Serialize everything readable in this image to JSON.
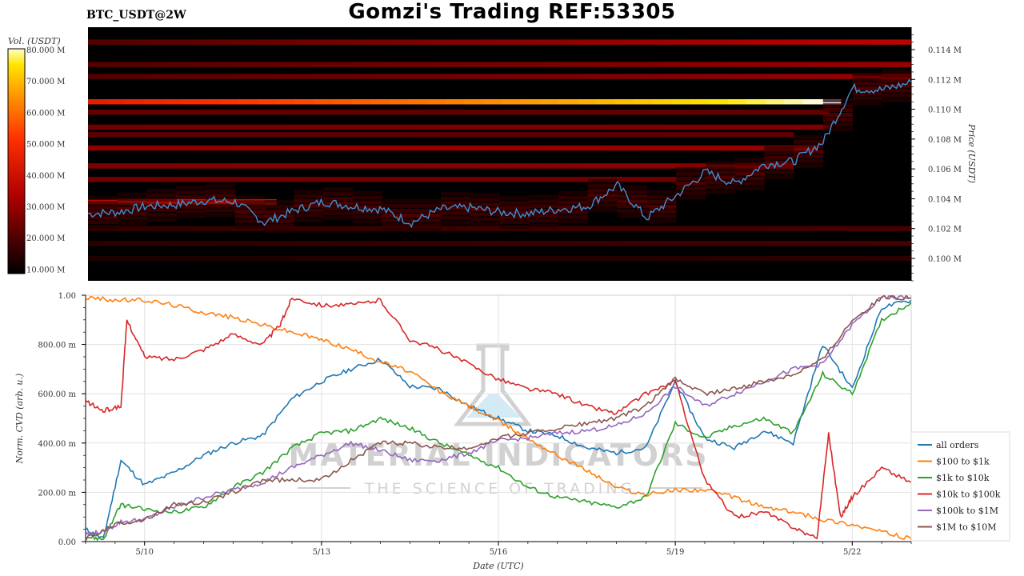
{
  "header": {
    "title": "Gomzi's Trading REF:53305",
    "symbol": "BTC_USDT@2W"
  },
  "watermark": {
    "line1": "MATERIAL INDICATORS",
    "line2": "THE SCIENCE OF TRADING",
    "icon": "flask-icon"
  },
  "colors": {
    "heat_bg": "#000000",
    "price_line": "#3d8fd4",
    "all_orders": "#1f77b4",
    "s100_1k": "#ff7f0e",
    "s1k_10k": "#2ca02c",
    "s10k_100k": "#d62728",
    "s100k_1m": "#9467bd",
    "s1m_10m": "#8c564b"
  },
  "chart_data": [
    {
      "type": "heatmap",
      "colorbar": {
        "label": "Vol. (USDT)",
        "ticks": [
          "80.000 M",
          "70.000 M",
          "60.000 M",
          "50.000 M",
          "40.000 M",
          "30.000 M",
          "20.000 M",
          "10.000 M"
        ],
        "range": [
          8,
          80
        ]
      },
      "y_axis": {
        "label": "Price (USDT)",
        "ticks": [
          "0.114 M",
          "0.112 M",
          "0.110 M",
          "0.108 M",
          "0.106 M",
          "0.104 M",
          "0.102 M",
          "0.100 M"
        ],
        "range": [
          0.0985,
          0.1155
        ]
      },
      "x_range": [
        0,
        14
      ],
      "price_series": {
        "x": [
          0,
          0.5,
          1,
          1.5,
          2,
          2.5,
          3,
          3.5,
          4,
          4.5,
          5,
          5.5,
          6,
          6.5,
          7,
          7.5,
          8,
          8.5,
          9,
          9.5,
          10,
          10.5,
          11,
          11.5,
          12,
          12.5,
          13,
          13.5,
          14
        ],
        "y": [
          0.103,
          0.1031,
          0.1035,
          0.1036,
          0.1039,
          0.1038,
          0.1024,
          0.1032,
          0.1038,
          0.1035,
          0.1033,
          0.1024,
          0.1033,
          0.1034,
          0.1031,
          0.103,
          0.1033,
          0.1035,
          0.1049,
          0.1027,
          0.1042,
          0.1058,
          0.105,
          0.1063,
          0.1065,
          0.1078,
          0.1114,
          0.1113,
          0.1118
        ]
      },
      "bands": [
        {
          "price": 0.1105,
          "vol_start": 45,
          "vol_end": 80,
          "x_end": 12.8
        },
        {
          "price": 0.1038,
          "vol_start": 38,
          "vol_end": 42,
          "x_end": 3.2
        },
        {
          "price": 0.1074,
          "vol_start": 28,
          "vol_end": 30,
          "x_end": 12.4
        },
        {
          "price": 0.1062,
          "vol_start": 26,
          "vol_end": 28,
          "x_end": 12.0
        },
        {
          "price": 0.1088,
          "vol_start": 24,
          "vol_end": 26,
          "x_end": 12.6
        },
        {
          "price": 0.1053,
          "vol_start": 24,
          "vol_end": 24,
          "x_end": 10.0
        },
        {
          "price": 0.1098,
          "vol_start": 22,
          "vol_end": 22,
          "x_end": 12.6
        },
        {
          "price": 0.1083,
          "vol_start": 21,
          "vol_end": 21,
          "x_end": 12.0
        },
        {
          "price": 0.101,
          "vol_start": 14,
          "vol_end": 18,
          "x_end": 14
        },
        {
          "price": 0.102,
          "vol_start": 15,
          "vol_end": 18,
          "x_end": 14
        },
        {
          "price": 0.1,
          "vol_start": 12,
          "vol_end": 14,
          "x_end": 14
        },
        {
          "price": 0.1145,
          "vol_start": 20,
          "vol_end": 35,
          "x_end": 14
        },
        {
          "price": 0.113,
          "vol_start": 20,
          "vol_end": 30,
          "x_end": 14
        },
        {
          "price": 0.1122,
          "vol_start": 20,
          "vol_end": 30,
          "x_end": 14
        }
      ]
    },
    {
      "type": "line",
      "xlabel": "Date (UTC)",
      "ylabel": "Norm. CVD (arb. u.)",
      "x_ticks": [
        {
          "x": 1,
          "label": "5/10"
        },
        {
          "x": 4,
          "label": "5/13"
        },
        {
          "x": 7,
          "label": "5/16"
        },
        {
          "x": 10,
          "label": "5/19"
        },
        {
          "x": 13,
          "label": "5/22"
        }
      ],
      "y_ticks": [
        {
          "y": 0.0,
          "label": "0.00"
        },
        {
          "y": 0.2,
          "label": "200.00 m"
        },
        {
          "y": 0.4,
          "label": "400.00 m"
        },
        {
          "y": 0.6,
          "label": "600.00 m"
        },
        {
          "y": 0.8,
          "label": "800.00 m"
        },
        {
          "y": 1.0,
          "label": "1.00"
        }
      ],
      "xlim": [
        0,
        14
      ],
      "ylim": [
        0,
        1
      ],
      "grid": true,
      "legend": "bottom-right",
      "series": [
        {
          "name": "all orders",
          "color_key": "all_orders",
          "x": [
            0,
            0.3,
            0.6,
            1,
            1.5,
            2,
            2.5,
            3,
            3.5,
            4,
            4.5,
            5,
            5.5,
            6,
            6.5,
            7,
            7.5,
            8,
            8.5,
            9,
            9.5,
            10,
            10.5,
            11,
            11.5,
            12,
            12.5,
            13,
            13.5,
            14
          ],
          "y": [
            0.05,
            0.01,
            0.33,
            0.23,
            0.28,
            0.35,
            0.4,
            0.43,
            0.58,
            0.65,
            0.7,
            0.74,
            0.63,
            0.62,
            0.55,
            0.5,
            0.45,
            0.43,
            0.38,
            0.36,
            0.38,
            0.65,
            0.42,
            0.38,
            0.45,
            0.4,
            0.8,
            0.62,
            0.95,
            0.98
          ]
        },
        {
          "name": "$100 to $1k",
          "color_key": "s100_1k",
          "x": [
            0,
            0.5,
            1,
            1.5,
            2,
            2.5,
            3,
            3.5,
            4,
            4.5,
            5,
            5.5,
            6,
            6.5,
            7,
            7.5,
            8,
            8.5,
            9,
            9.5,
            10,
            10.5,
            11,
            11.5,
            12,
            12.5,
            13,
            13.5,
            14
          ],
          "y": [
            0.99,
            0.98,
            0.98,
            0.96,
            0.93,
            0.91,
            0.88,
            0.85,
            0.82,
            0.78,
            0.73,
            0.69,
            0.61,
            0.55,
            0.49,
            0.42,
            0.35,
            0.29,
            0.22,
            0.19,
            0.21,
            0.21,
            0.18,
            0.14,
            0.12,
            0.09,
            0.07,
            0.04,
            0.01
          ]
        },
        {
          "name": "$1k to $10k",
          "color_key": "s1k_10k",
          "x": [
            0,
            0.3,
            0.6,
            1,
            1.5,
            2,
            2.5,
            3,
            3.5,
            4,
            4.5,
            5,
            5.5,
            6,
            6.5,
            7,
            7.5,
            8,
            8.5,
            9,
            9.5,
            10,
            10.5,
            11,
            11.5,
            12,
            12.5,
            13,
            13.5,
            14
          ],
          "y": [
            0.02,
            0.01,
            0.15,
            0.13,
            0.12,
            0.14,
            0.22,
            0.28,
            0.38,
            0.44,
            0.45,
            0.5,
            0.46,
            0.4,
            0.35,
            0.3,
            0.22,
            0.18,
            0.16,
            0.14,
            0.18,
            0.48,
            0.42,
            0.47,
            0.5,
            0.44,
            0.68,
            0.6,
            0.9,
            0.97
          ]
        },
        {
          "name": "$10k to $100k",
          "color_key": "s10k_100k",
          "x": [
            0,
            0.3,
            0.6,
            0.7,
            1,
            1.5,
            2,
            2.5,
            3,
            3.3,
            3.5,
            4,
            4.5,
            5,
            5.5,
            6,
            6.5,
            7,
            7.5,
            8,
            8.5,
            9,
            9.5,
            10,
            10.5,
            11,
            11.5,
            12,
            12.4,
            12.6,
            12.8,
            13,
            13.5,
            14
          ],
          "y": [
            0.57,
            0.53,
            0.55,
            0.9,
            0.75,
            0.74,
            0.78,
            0.84,
            0.8,
            0.88,
            0.99,
            0.96,
            0.96,
            0.98,
            0.82,
            0.78,
            0.72,
            0.66,
            0.62,
            0.6,
            0.55,
            0.52,
            0.6,
            0.65,
            0.25,
            0.1,
            0.12,
            0.06,
            0.01,
            0.44,
            0.1,
            0.18,
            0.3,
            0.24
          ]
        },
        {
          "name": "$100k to $1M",
          "color_key": "s100k_1m",
          "x": [
            0,
            0.3,
            0.6,
            1,
            1.5,
            2,
            2.5,
            3,
            3.5,
            4,
            4.5,
            5,
            5.5,
            6,
            6.5,
            7,
            7.5,
            8,
            8.5,
            9,
            9.5,
            10,
            10.5,
            11,
            11.5,
            12,
            12.5,
            13,
            13.5,
            14
          ],
          "y": [
            0.03,
            0.04,
            0.08,
            0.09,
            0.14,
            0.18,
            0.21,
            0.24,
            0.3,
            0.35,
            0.4,
            0.37,
            0.33,
            0.33,
            0.36,
            0.41,
            0.42,
            0.44,
            0.45,
            0.47,
            0.52,
            0.63,
            0.55,
            0.6,
            0.65,
            0.7,
            0.72,
            0.88,
            0.99,
            0.99
          ]
        },
        {
          "name": "$1M to $10M",
          "color_key": "s1m_10m",
          "x": [
            0,
            0.5,
            1,
            1.5,
            2,
            2.5,
            3,
            3.5,
            4,
            4.5,
            5,
            5.5,
            6,
            6.5,
            7,
            7.5,
            8,
            8.5,
            9,
            9.5,
            10,
            10.5,
            11,
            11.5,
            12,
            12.5,
            13,
            13.5,
            14
          ],
          "y": [
            0.01,
            0.07,
            0.09,
            0.15,
            0.16,
            0.2,
            0.25,
            0.25,
            0.25,
            0.33,
            0.4,
            0.4,
            0.38,
            0.38,
            0.42,
            0.44,
            0.46,
            0.48,
            0.5,
            0.55,
            0.66,
            0.6,
            0.62,
            0.65,
            0.68,
            0.74,
            0.9,
            0.99,
            0.99
          ]
        }
      ]
    }
  ]
}
